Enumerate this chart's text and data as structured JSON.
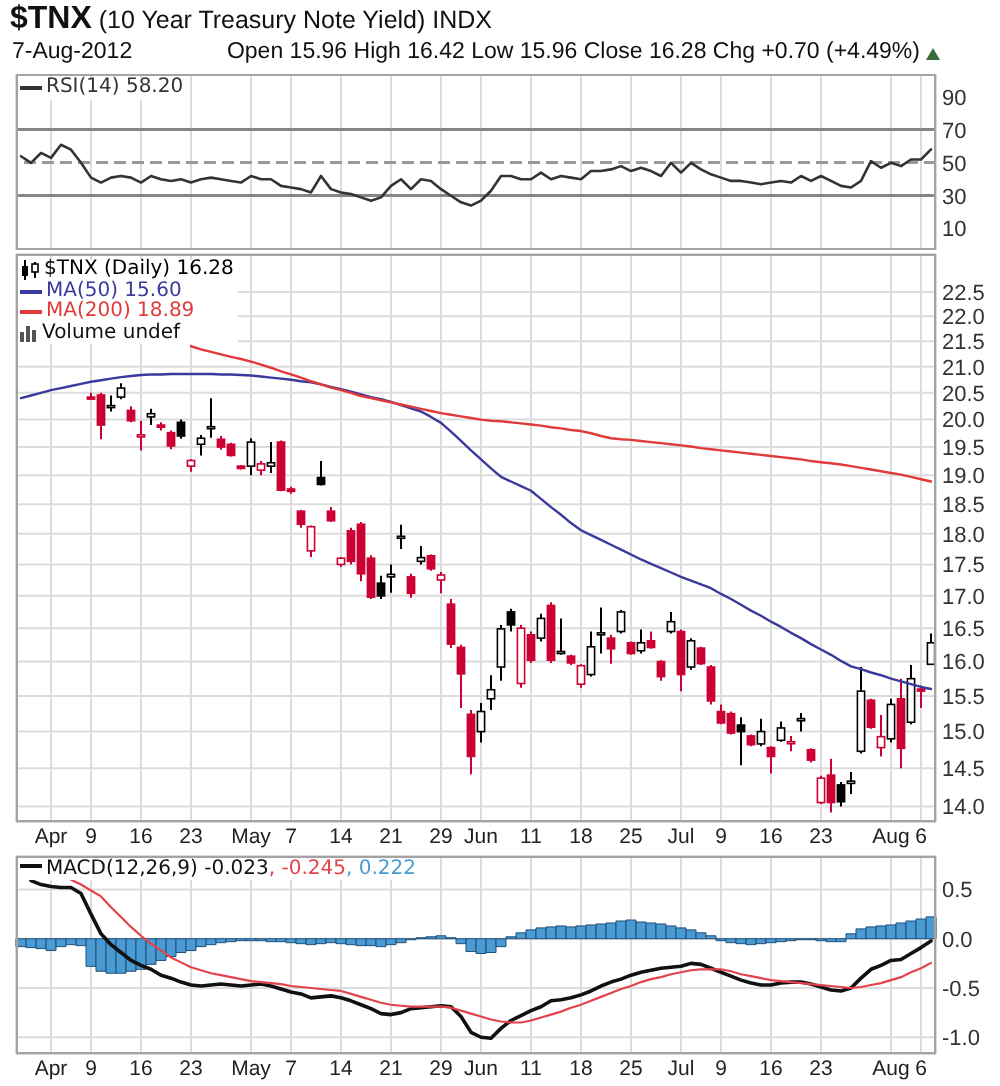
{
  "chart_data": [
    {
      "type": "line",
      "title": "$TNX (10 Year Treasury Note Yield) INDX",
      "subtitle": "7-Aug-2012",
      "annotations": [
        "Open 15.96 High 16.42 Low 15.96 Close 16.28 Chg +0.70 (+4.49%)"
      ],
      "categories": [
        null,
        null,
        null,
        null,
        null,
        null,
        null,
        null,
        null,
        null,
        null,
        null,
        null,
        null,
        null,
        null,
        null,
        null,
        null,
        null,
        null,
        null,
        null,
        null,
        null,
        null,
        null,
        null,
        null,
        null,
        null,
        null,
        null,
        null,
        null,
        null,
        null,
        null,
        null,
        null,
        null,
        null,
        null,
        null,
        null,
        null,
        null,
        null,
        null,
        null,
        null,
        null,
        null,
        null,
        null,
        null,
        null,
        null,
        null,
        null,
        null,
        null,
        null,
        null,
        null,
        null,
        null,
        null,
        null,
        null,
        null,
        null,
        null,
        null,
        null,
        null,
        null,
        null,
        null,
        null,
        null,
        null,
        null,
        null,
        null,
        null,
        null,
        null,
        null,
        null,
        null,
        null
      ],
      "series": [
        {
          "name": "RSI(14) 58.20",
          "color": "#333333",
          "values": [
            54,
            50,
            56,
            53,
            61,
            58,
            50,
            41,
            38,
            41,
            42,
            41,
            38,
            42,
            40,
            39,
            40,
            38,
            40,
            41,
            40,
            39,
            38,
            42,
            40,
            40,
            36,
            35,
            34,
            32,
            42,
            34,
            32,
            31,
            29,
            27,
            29,
            36,
            40,
            34,
            40,
            39,
            34,
            30,
            26,
            24,
            27,
            33,
            42,
            42,
            40,
            40,
            44,
            40,
            42,
            41,
            40,
            45,
            45,
            46,
            48,
            45,
            47,
            45,
            42,
            50,
            44,
            50,
            46,
            43,
            41,
            39,
            39,
            38,
            37,
            38,
            39,
            38,
            42,
            39,
            42,
            39,
            36,
            35,
            39,
            51,
            47,
            50,
            48,
            52,
            52,
            58.2
          ]
        }
      ],
      "ylim": [
        -3,
        104
      ],
      "yticks": [
        10,
        30,
        50,
        70,
        90
      ],
      "ref_lines": [
        {
          "axis": "y",
          "value": 70,
          "color": "#858585"
        },
        {
          "axis": "y",
          "value": 50,
          "color": "#9a9a9a",
          "line_style": "dashed"
        },
        {
          "axis": "y",
          "value": 30,
          "color": "#858585"
        }
      ],
      "grid": "x",
      "legend": "top left",
      "tick_labels": "y"
    },
    {
      "type": "candlestick",
      "annotations": [
        "Volume undef"
      ],
      "categories": [
        null,
        null,
        null,
        "Apr",
        null,
        null,
        null,
        "9",
        null,
        null,
        null,
        null,
        "16",
        null,
        null,
        null,
        null,
        "23",
        null,
        null,
        null,
        null,
        null,
        "May",
        null,
        null,
        null,
        "7",
        null,
        null,
        null,
        null,
        "14",
        null,
        null,
        null,
        null,
        "21",
        null,
        null,
        null,
        null,
        "29",
        null,
        null,
        null,
        "Jun",
        null,
        null,
        null,
        null,
        "11",
        null,
        null,
        null,
        null,
        "18",
        null,
        null,
        null,
        null,
        "25",
        null,
        null,
        null,
        null,
        "Jul",
        null,
        null,
        null,
        "9",
        null,
        null,
        null,
        null,
        "16",
        null,
        null,
        null,
        null,
        "23",
        null,
        null,
        null,
        null,
        null,
        null,
        "Aug",
        null,
        null,
        "6",
        null
      ],
      "series": [
        {
          "name": "$TNX (Daily) 16.28",
          "ohlc": [
            null,
            null,
            null,
            null,
            null,
            null,
            null,
            [
              20.42,
              20.5,
              20.38,
              20.4
            ],
            [
              20.46,
              20.5,
              19.64,
              19.9
            ],
            [
              20.24,
              20.45,
              20.15,
              20.26
            ],
            [
              20.42,
              20.68,
              20.38,
              20.59
            ],
            [
              20.17,
              20.25,
              19.95,
              19.98
            ],
            [
              19.7,
              19.98,
              19.44,
              19.72
            ],
            [
              20.05,
              20.2,
              19.9,
              20.11
            ],
            [
              19.9,
              19.95,
              19.8,
              19.86
            ],
            [
              19.76,
              19.8,
              19.46,
              19.52
            ],
            [
              19.95,
              20.0,
              19.65,
              19.7
            ],
            [
              19.16,
              19.28,
              19.06,
              19.26
            ],
            [
              19.55,
              19.72,
              19.35,
              19.66
            ],
            [
              19.85,
              20.4,
              19.67,
              19.87
            ],
            [
              19.64,
              19.7,
              19.45,
              19.5
            ],
            [
              19.55,
              19.58,
              19.33,
              19.35
            ],
            [
              19.16,
              19.18,
              19.1,
              19.12
            ],
            [
              19.16,
              19.66,
              19.0,
              19.59
            ],
            [
              19.09,
              19.25,
              19.0,
              19.2
            ],
            [
              19.16,
              19.59,
              19.04,
              19.22
            ],
            [
              19.59,
              19.62,
              18.72,
              18.74
            ],
            [
              18.76,
              18.8,
              18.68,
              18.72
            ],
            [
              18.38,
              18.4,
              18.1,
              18.16
            ],
            [
              17.72,
              18.14,
              17.62,
              18.12
            ],
            [
              18.96,
              19.25,
              18.82,
              18.84
            ],
            [
              18.38,
              18.45,
              18.2,
              18.22
            ],
            [
              17.5,
              17.62,
              17.46,
              17.6
            ],
            [
              18.05,
              18.1,
              17.5,
              17.55
            ],
            [
              18.16,
              18.2,
              17.23,
              17.35
            ],
            [
              17.6,
              17.65,
              16.95,
              16.98
            ],
            [
              17.2,
              17.32,
              16.95,
              17.0
            ],
            [
              17.3,
              17.5,
              17.05,
              17.34
            ],
            [
              17.93,
              18.15,
              17.75,
              17.96
            ],
            [
              17.3,
              17.35,
              16.97,
              17.04
            ],
            [
              17.55,
              17.8,
              17.5,
              17.61
            ],
            [
              17.64,
              17.66,
              17.4,
              17.43
            ],
            [
              17.25,
              17.38,
              17.04,
              17.33
            ],
            [
              16.87,
              16.95,
              16.2,
              16.26
            ],
            [
              16.21,
              16.25,
              15.33,
              15.82
            ],
            [
              15.24,
              15.3,
              14.42,
              14.66
            ],
            [
              15.0,
              15.4,
              14.85,
              15.28
            ],
            [
              15.46,
              15.8,
              15.3,
              15.59
            ],
            [
              15.92,
              16.55,
              15.72,
              16.49
            ],
            [
              16.75,
              16.8,
              16.45,
              16.55
            ],
            [
              15.68,
              16.55,
              15.62,
              16.5
            ],
            [
              16.4,
              16.45,
              15.98,
              16.02
            ],
            [
              16.35,
              16.72,
              16.3,
              16.65
            ],
            [
              16.85,
              16.9,
              15.98,
              16.02
            ],
            [
              16.12,
              16.65,
              16.1,
              16.15
            ],
            [
              16.08,
              16.1,
              15.95,
              15.98
            ],
            [
              15.67,
              15.96,
              15.62,
              15.94
            ],
            [
              15.81,
              16.45,
              15.78,
              16.22
            ],
            [
              16.4,
              16.82,
              16.12,
              16.43
            ],
            [
              16.35,
              16.4,
              15.97,
              16.19
            ],
            [
              16.45,
              16.78,
              16.42,
              16.75
            ],
            [
              16.28,
              16.3,
              16.1,
              16.12
            ],
            [
              16.16,
              16.48,
              16.12,
              16.28
            ],
            [
              16.31,
              16.45,
              16.19,
              16.21
            ],
            [
              16.0,
              16.02,
              15.72,
              15.78
            ],
            [
              16.45,
              16.75,
              16.42,
              16.6
            ],
            [
              16.45,
              16.48,
              15.57,
              15.81
            ],
            [
              15.92,
              16.35,
              15.88,
              16.31
            ],
            [
              16.2,
              16.22,
              15.95,
              15.97
            ],
            [
              15.92,
              15.95,
              15.38,
              15.43
            ],
            [
              15.28,
              15.38,
              15.1,
              15.12
            ],
            [
              15.25,
              15.28,
              14.96,
              14.98
            ],
            [
              15.09,
              15.2,
              14.54,
              15.0
            ],
            [
              14.94,
              14.96,
              14.8,
              14.82
            ],
            [
              14.83,
              15.18,
              14.8,
              15.0
            ],
            [
              14.78,
              14.8,
              14.43,
              14.66
            ],
            [
              14.88,
              15.14,
              14.86,
              15.05
            ],
            [
              14.84,
              14.94,
              14.73,
              14.86
            ],
            [
              15.15,
              15.26,
              15.0,
              15.18
            ],
            [
              14.75,
              14.77,
              14.58,
              14.61
            ],
            [
              14.05,
              14.4,
              14.03,
              14.37
            ],
            [
              14.41,
              14.63,
              13.92,
              14.05
            ],
            [
              14.28,
              14.32,
              14.0,
              14.06
            ],
            [
              14.3,
              14.45,
              14.16,
              14.33
            ],
            [
              14.73,
              15.92,
              14.7,
              15.57
            ],
            [
              15.44,
              15.46,
              15.04,
              15.06
            ],
            [
              14.78,
              15.23,
              14.66,
              14.93
            ],
            [
              14.9,
              15.46,
              14.85,
              15.38
            ],
            [
              15.46,
              15.75,
              14.5,
              14.77
            ],
            [
              15.13,
              15.95,
              15.1,
              15.75
            ],
            [
              15.6,
              15.65,
              15.33,
              15.58
            ],
            [
              15.96,
              16.42,
              15.96,
              16.28
            ]
          ],
          "colors": [
            null,
            null,
            null,
            null,
            null,
            null,
            null,
            "#cc0033",
            "#cc0033",
            "#000000",
            "#000000",
            "#cc0033",
            "#cc0033",
            "#000000",
            "#cc0033",
            "#cc0033",
            "#000000",
            "#cc0033",
            "#000000",
            "#000000",
            "#cc0033",
            "#cc0033",
            "#cc0033",
            "#000000",
            "#cc0033",
            "#000000",
            "#cc0033",
            "#cc0033",
            "#cc0033",
            "#cc0033",
            "#000000",
            "#cc0033",
            "#cc0033",
            "#cc0033",
            "#cc0033",
            "#cc0033",
            "#000000",
            "#000000",
            "#000000",
            "#cc0033",
            "#000000",
            "#cc0033",
            "#cc0033",
            "#cc0033",
            "#cc0033",
            "#cc0033",
            "#000000",
            "#000000",
            "#000000",
            "#000000",
            "#cc0033",
            "#cc0033",
            "#000000",
            "#cc0033",
            "#000000",
            "#cc0033",
            "#cc0033",
            "#000000",
            "#000000",
            "#cc0033",
            "#000000",
            "#cc0033",
            "#000000",
            "#cc0033",
            "#cc0033",
            "#000000",
            "#cc0033",
            "#000000",
            "#cc0033",
            "#cc0033",
            "#cc0033",
            "#cc0033",
            "#000000",
            "#cc0033",
            "#000000",
            "#cc0033",
            "#000000",
            "#cc0033",
            "#000000",
            "#cc0033",
            "#cc0033",
            "#cc0033",
            "#000000",
            "#000000",
            "#000000",
            "#cc0033",
            "#cc0033",
            "#000000",
            "#cc0033",
            "#000000",
            "#cc0033",
            "#000000"
          ]
        },
        {
          "type": "line",
          "name": "MA(50) 15.60",
          "color": "#3a3a9c",
          "values": [
            20.4,
            20.45,
            20.5,
            20.55,
            20.59,
            20.63,
            20.67,
            20.71,
            20.74,
            20.77,
            20.8,
            20.82,
            20.84,
            20.85,
            20.85,
            20.86,
            20.86,
            20.86,
            20.86,
            20.86,
            20.85,
            20.85,
            20.84,
            20.83,
            20.81,
            20.79,
            20.77,
            20.75,
            20.72,
            20.7,
            20.66,
            20.61,
            20.57,
            20.52,
            20.47,
            20.42,
            20.38,
            20.33,
            20.27,
            20.21,
            20.15,
            20.05,
            19.94,
            19.78,
            19.61,
            19.44,
            19.28,
            19.12,
            18.97,
            18.89,
            18.81,
            18.73,
            18.59,
            18.45,
            18.32,
            18.18,
            18.06,
            17.98,
            17.9,
            17.82,
            17.74,
            17.66,
            17.58,
            17.51,
            17.44,
            17.37,
            17.3,
            17.24,
            17.18,
            17.12,
            17.03,
            16.95,
            16.86,
            16.77,
            16.69,
            16.6,
            16.52,
            16.43,
            16.35,
            16.26,
            16.18,
            16.1,
            16.01,
            15.93,
            15.89,
            15.84,
            15.8,
            15.75,
            15.71,
            15.67,
            15.63,
            15.6
          ]
        },
        {
          "type": "line",
          "name": "MA(200) 18.89",
          "color": "#e03a3a",
          "values": [
            null,
            null,
            null,
            null,
            null,
            null,
            null,
            null,
            null,
            null,
            null,
            null,
            null,
            null,
            null,
            null,
            null,
            21.4,
            21.34,
            21.29,
            21.24,
            21.19,
            21.15,
            21.1,
            21.04,
            20.98,
            20.91,
            20.85,
            20.79,
            20.72,
            20.66,
            20.6,
            20.55,
            20.5,
            20.44,
            20.4,
            20.36,
            20.32,
            20.28,
            20.24,
            20.2,
            20.16,
            20.12,
            20.09,
            20.06,
            20.03,
            20.0,
            19.98,
            19.97,
            19.95,
            19.93,
            19.91,
            19.89,
            19.86,
            19.84,
            19.81,
            19.79,
            19.75,
            19.7,
            19.66,
            19.64,
            19.63,
            19.61,
            19.59,
            19.57,
            19.55,
            19.53,
            19.51,
            19.48,
            19.46,
            19.44,
            19.42,
            19.4,
            19.38,
            19.36,
            19.34,
            19.32,
            19.3,
            19.28,
            19.25,
            19.23,
            19.21,
            19.19,
            19.16,
            19.13,
            19.1,
            19.07,
            19.04,
            19.01,
            18.97,
            18.93,
            18.89
          ]
        }
      ],
      "log": true,
      "ylim": [
        13.8,
        23.3
      ],
      "yticks": [
        {
          "value": 14,
          "label": "14.0"
        },
        14.5,
        {
          "value": 15,
          "label": "15.0"
        },
        15.5,
        {
          "value": 16,
          "label": "16.0"
        },
        16.5,
        {
          "value": 17,
          "label": "17.0"
        },
        17.5,
        {
          "value": 18,
          "label": "18.0"
        },
        18.5,
        {
          "value": 19,
          "label": "19.0"
        },
        19.5,
        {
          "value": 20,
          "label": "20.0"
        },
        20.5,
        {
          "value": 21,
          "label": "21.0"
        },
        21.5,
        {
          "value": 22,
          "label": "22.0"
        },
        22.5
      ],
      "grid": true,
      "legend": "top left"
    },
    {
      "type": "line",
      "categories": [
        null,
        null,
        null,
        "Apr",
        null,
        null,
        null,
        "9",
        null,
        null,
        null,
        null,
        "16",
        null,
        null,
        null,
        null,
        "23",
        null,
        null,
        null,
        null,
        null,
        "May",
        null,
        null,
        null,
        "7",
        null,
        null,
        null,
        null,
        "14",
        null,
        null,
        null,
        null,
        "21",
        null,
        null,
        null,
        null,
        "29",
        null,
        null,
        null,
        "Jun",
        null,
        null,
        null,
        null,
        "11",
        null,
        null,
        null,
        null,
        "18",
        null,
        null,
        null,
        null,
        "25",
        null,
        null,
        null,
        null,
        "Jul",
        null,
        null,
        null,
        "9",
        null,
        null,
        null,
        null,
        "16",
        null,
        null,
        null,
        null,
        "23",
        null,
        null,
        null,
        null,
        null,
        null,
        "Aug",
        null,
        null,
        "6",
        null
      ],
      "series": [
        {
          "name": "MACD(12,26,9) -0.023",
          "color": "#111111",
          "values": [
            null,
            0.59,
            0.55,
            0.53,
            0.52,
            0.52,
            0.46,
            0.25,
            0.05,
            -0.06,
            -0.14,
            -0.22,
            -0.27,
            -0.31,
            -0.37,
            -0.4,
            -0.44,
            -0.47,
            -0.48,
            -0.47,
            -0.46,
            -0.47,
            -0.48,
            -0.47,
            -0.46,
            -0.48,
            -0.51,
            -0.54,
            -0.56,
            -0.6,
            -0.59,
            -0.58,
            -0.6,
            -0.63,
            -0.67,
            -0.71,
            -0.76,
            -0.77,
            -0.75,
            -0.71,
            -0.7,
            -0.69,
            -0.68,
            -0.69,
            -0.79,
            -0.95,
            -1.0,
            -1.01,
            -0.91,
            -0.83,
            -0.78,
            -0.73,
            -0.69,
            -0.63,
            -0.62,
            -0.6,
            -0.57,
            -0.53,
            -0.48,
            -0.44,
            -0.41,
            -0.37,
            -0.34,
            -0.32,
            -0.3,
            -0.29,
            -0.28,
            -0.25,
            -0.26,
            -0.3,
            -0.34,
            -0.38,
            -0.42,
            -0.45,
            -0.47,
            -0.47,
            -0.45,
            -0.44,
            -0.44,
            -0.46,
            -0.49,
            -0.52,
            -0.53,
            -0.5,
            -0.4,
            -0.31,
            -0.27,
            -0.22,
            -0.21,
            -0.15,
            -0.09,
            -0.023
          ]
        },
        {
          "name": ", -0.245",
          "color": "#e3434b",
          "values": [
            null,
            null,
            null,
            null,
            null,
            0.6,
            0.55,
            0.49,
            0.43,
            0.32,
            0.22,
            0.12,
            0.03,
            -0.05,
            -0.12,
            -0.19,
            -0.24,
            -0.29,
            -0.32,
            -0.35,
            -0.37,
            -0.39,
            -0.41,
            -0.43,
            -0.44,
            -0.45,
            -0.46,
            -0.48,
            -0.49,
            -0.5,
            -0.51,
            -0.52,
            -0.53,
            -0.56,
            -0.59,
            -0.62,
            -0.65,
            -0.67,
            -0.68,
            -0.69,
            -0.69,
            -0.69,
            -0.69,
            -0.7,
            -0.73,
            -0.76,
            -0.79,
            -0.82,
            -0.84,
            -0.85,
            -0.85,
            -0.83,
            -0.8,
            -0.77,
            -0.74,
            -0.7,
            -0.67,
            -0.63,
            -0.59,
            -0.55,
            -0.51,
            -0.48,
            -0.44,
            -0.41,
            -0.39,
            -0.36,
            -0.34,
            -0.32,
            -0.31,
            -0.31,
            -0.31,
            -0.33,
            -0.36,
            -0.38,
            -0.4,
            -0.42,
            -0.43,
            -0.44,
            -0.45,
            -0.46,
            -0.47,
            -0.48,
            -0.49,
            -0.5,
            -0.49,
            -0.47,
            -0.45,
            -0.42,
            -0.39,
            -0.34,
            -0.3,
            -0.245
          ]
        },
        {
          "type": "bar",
          "name": ", 0.222",
          "color": "#4a9ad4",
          "values": [
            -0.08,
            -0.09,
            -0.1,
            -0.12,
            -0.08,
            -0.06,
            -0.07,
            -0.28,
            -0.33,
            -0.35,
            -0.35,
            -0.33,
            -0.31,
            -0.26,
            -0.22,
            -0.18,
            -0.14,
            -0.12,
            -0.08,
            -0.06,
            -0.04,
            -0.03,
            -0.02,
            -0.02,
            -0.02,
            -0.03,
            -0.03,
            -0.04,
            -0.05,
            -0.06,
            -0.05,
            -0.04,
            -0.05,
            -0.06,
            -0.07,
            -0.07,
            -0.08,
            -0.06,
            -0.04,
            -0.01,
            0.01,
            0.02,
            0.03,
            0.01,
            -0.05,
            -0.13,
            -0.15,
            -0.14,
            -0.08,
            0.02,
            0.06,
            0.09,
            0.11,
            0.12,
            0.13,
            0.12,
            0.13,
            0.14,
            0.15,
            0.16,
            0.18,
            0.19,
            0.17,
            0.16,
            0.15,
            0.13,
            0.11,
            0.09,
            0.06,
            0.03,
            -0.02,
            -0.04,
            -0.05,
            -0.06,
            -0.05,
            -0.04,
            -0.03,
            -0.02,
            -0.01,
            -0.01,
            -0.02,
            -0.03,
            -0.03,
            0.05,
            0.1,
            0.12,
            0.13,
            0.14,
            0.16,
            0.18,
            0.2,
            0.222
          ]
        }
      ],
      "ylim": [
        -1.17,
        0.84
      ],
      "yticks": [
        {
          "value": -1,
          "label": "-1.0"
        },
        -0.5,
        {
          "value": 0,
          "label": "0.0"
        },
        0.5
      ],
      "grid": true,
      "legend": "top left"
    }
  ]
}
